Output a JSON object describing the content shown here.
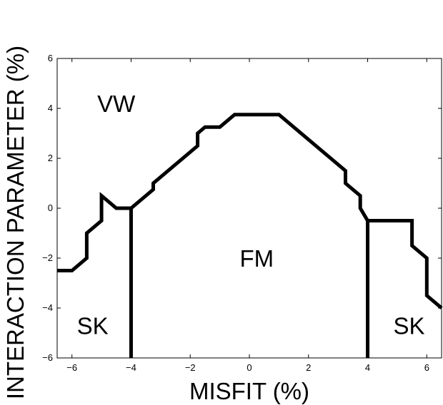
{
  "chart_data": {
    "type": "line",
    "title": "",
    "xlabel": "MISFIT (%)",
    "ylabel": "INTERACTION PARAMETER (%)",
    "xlim": [
      -6.5,
      6.5
    ],
    "ylim": [
      -6,
      6
    ],
    "xticks": [
      -6,
      -4,
      -2,
      0,
      2,
      4,
      6
    ],
    "yticks": [
      -6,
      -4,
      -2,
      0,
      2,
      4,
      6
    ],
    "xtick_labels": [
      "−6",
      "−4",
      "−2",
      "0",
      "2",
      "4",
      "6"
    ],
    "ytick_labels": [
      "−6",
      "−4",
      "−2",
      "0",
      "2",
      "4",
      "6"
    ],
    "grid": false,
    "colors": {
      "line": "#000000",
      "background": "#ffffff"
    },
    "series": [
      {
        "x": [
          -6.5,
          -6.0,
          -5.75,
          -5.5,
          -5.5,
          -5.0,
          -5.0,
          -4.75,
          -4.5,
          -4.0,
          -3.75,
          -3.5,
          -3.25,
          -3.25,
          -3.0,
          -2.75,
          -2.5,
          -2.25,
          -2.0,
          -1.75,
          -1.75,
          -1.5,
          -1.0,
          -0.5,
          0.0,
          0.5,
          1.0,
          1.5,
          2.0,
          2.5,
          3.0,
          3.25,
          3.25,
          3.5,
          3.75,
          3.75,
          4.0,
          4.5,
          5.0,
          5.5,
          5.5,
          5.75,
          6.0,
          6.0,
          6.5
        ],
        "y": [
          -2.5,
          -2.5,
          -2.25,
          -2.0,
          -1.0,
          -0.5,
          0.5,
          0.25,
          0.0,
          0.0,
          0.25,
          0.5,
          0.75,
          1.0,
          1.25,
          1.5,
          1.75,
          2.0,
          2.25,
          2.5,
          3.0,
          3.25,
          3.25,
          3.75,
          3.75,
          3.75,
          3.75,
          3.25,
          2.75,
          2.25,
          1.75,
          1.5,
          1.0,
          0.75,
          0.5,
          0.0,
          -0.5,
          -0.5,
          -0.5,
          -0.5,
          -1.5,
          -1.75,
          -2.0,
          -3.5,
          -4.0
        ]
      },
      {
        "x": [
          -4.0,
          -4.0
        ],
        "y": [
          0.0,
          -6.0
        ]
      },
      {
        "x": [
          4.0,
          4.0
        ],
        "y": [
          -0.5,
          -6.0
        ]
      }
    ],
    "annotations": [
      {
        "text": "VW",
        "x": -4.5,
        "y": 4.2
      },
      {
        "text": "FM",
        "x": 0.25,
        "y": -2.0
      },
      {
        "text": "SK",
        "x": -5.3,
        "y": -4.7
      },
      {
        "text": "SK",
        "x": 5.4,
        "y": -4.7
      }
    ]
  }
}
